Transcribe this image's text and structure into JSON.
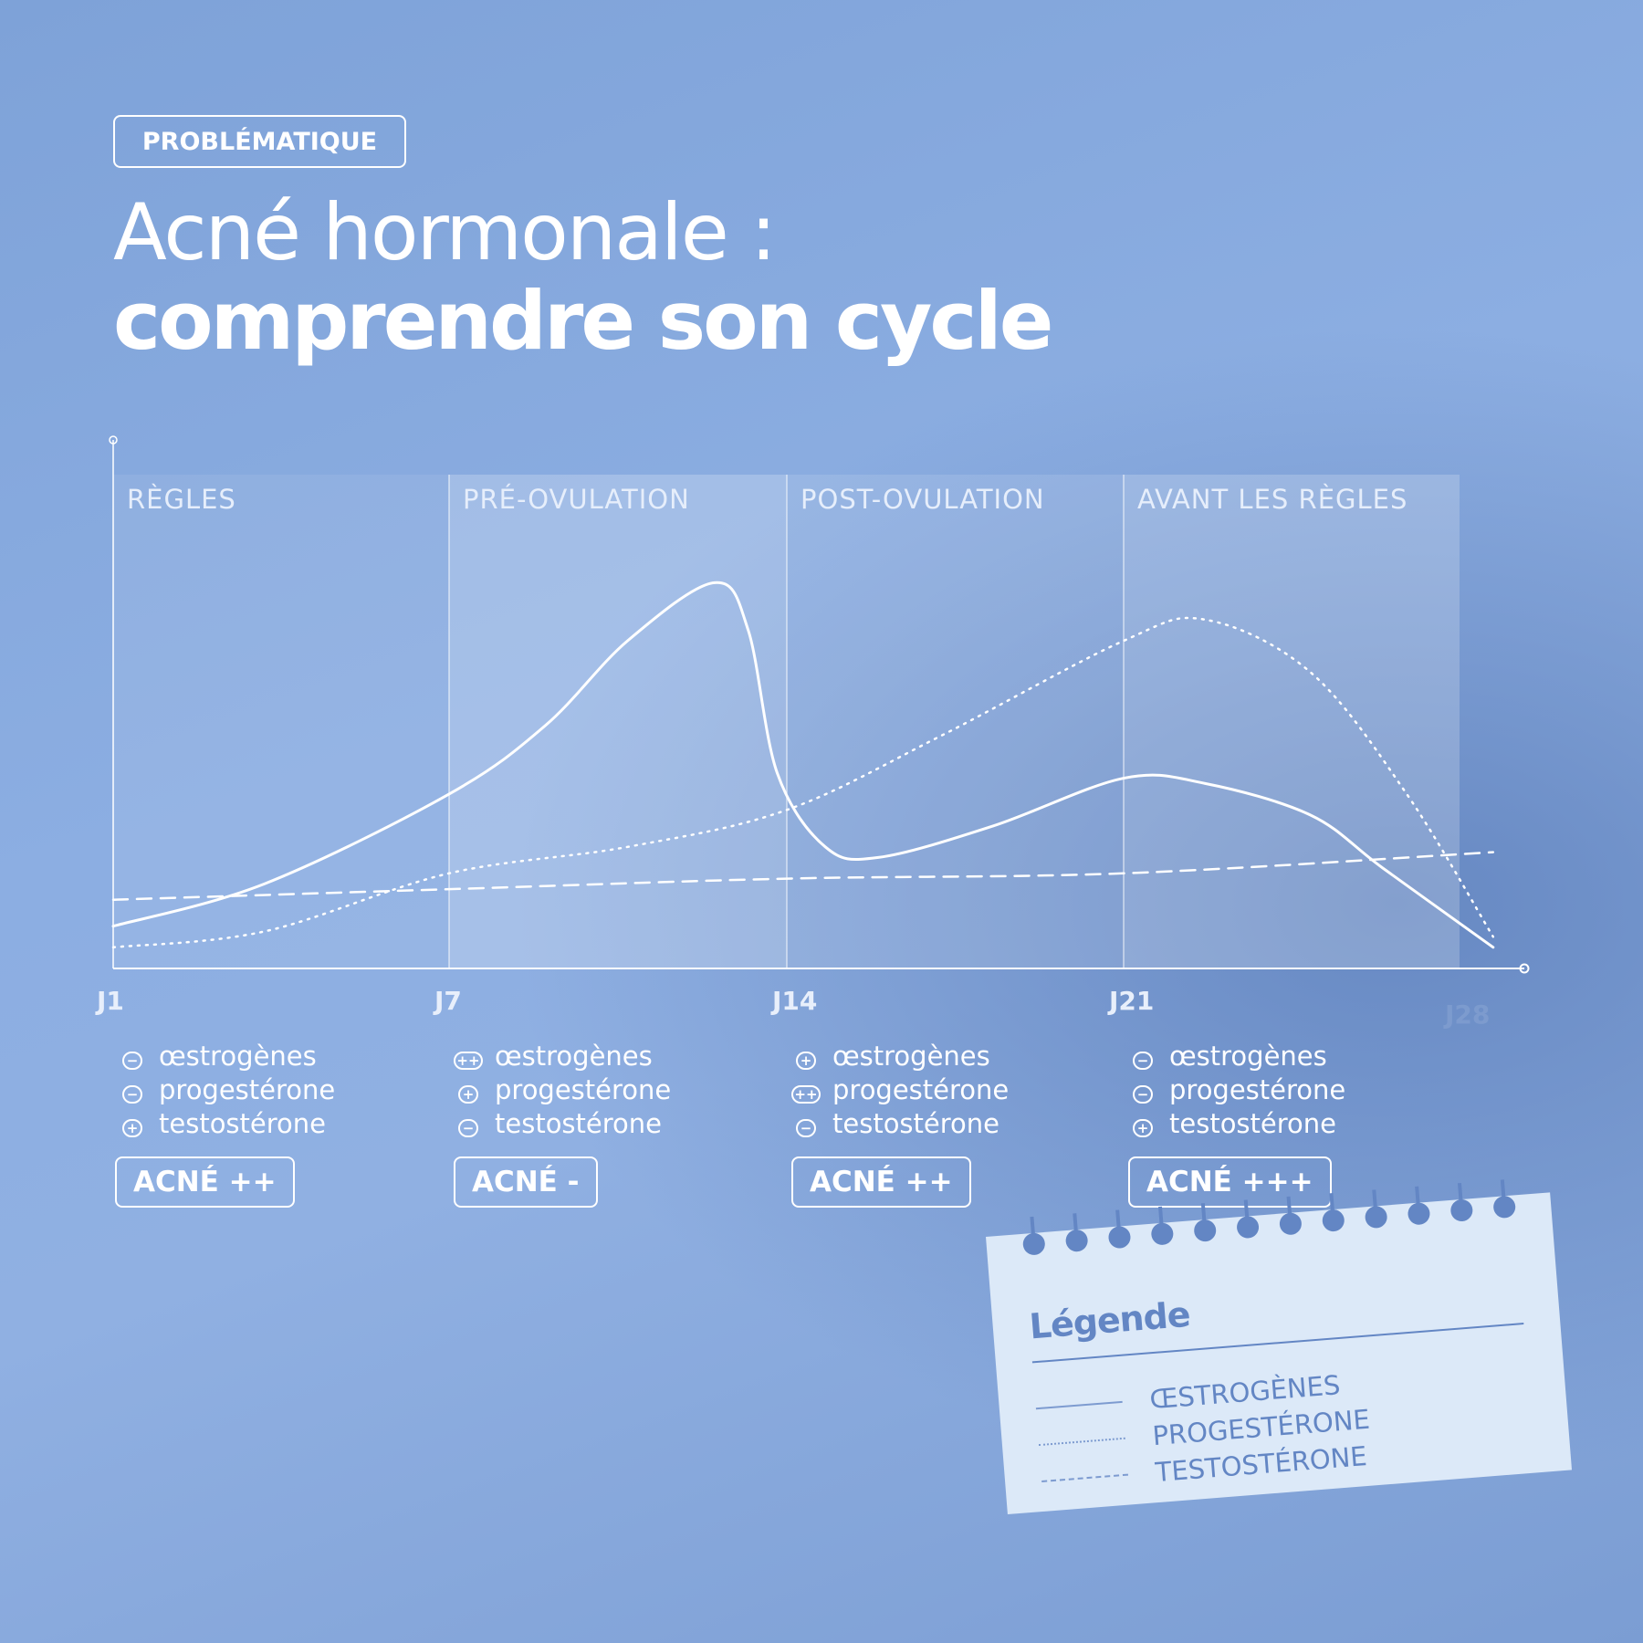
{
  "header": {
    "kicker": "PROBLÉMATIQUE",
    "title_line1": "Acné hormonale :",
    "title_line2": "comprendre son cycle"
  },
  "chart_data": {
    "type": "line",
    "x_ticks": [
      "J1",
      "J7",
      "J14",
      "J21",
      "J28"
    ],
    "x_tick_days": [
      1,
      7,
      14,
      21,
      28
    ],
    "phases": [
      "RÈGLES",
      "PRÉ-OVULATION",
      "POST-OVULATION",
      "AVANT LES RÈGLES"
    ],
    "ylim": [
      0,
      100
    ],
    "series": [
      {
        "name": "ŒSTROGÈNES",
        "style": "solid",
        "x": [
          1,
          3.7,
          7,
          9,
          10.7,
          12.5,
          13.2,
          13.8,
          14.8,
          15.9,
          18.3,
          21,
          22.7,
          24.9,
          26.4,
          28.7
        ],
        "y": [
          8,
          16,
          33,
          46,
          62,
          73,
          64,
          37,
          23,
          21,
          27,
          36,
          35,
          29,
          19,
          4
        ]
      },
      {
        "name": "PROGESTÉRONE",
        "style": "dotted",
        "x": [
          1,
          3.7,
          7,
          10.7,
          14,
          17.2,
          21,
          22.7,
          24.9,
          26.9,
          28.7
        ],
        "y": [
          4,
          7,
          18,
          23,
          30,
          44,
          62,
          66,
          56,
          33,
          6
        ]
      },
      {
        "name": "TESTOSTÉRONE",
        "style": "dashed",
        "x": [
          1,
          7,
          14,
          21,
          28.7
        ],
        "y": [
          13,
          15,
          17,
          18,
          22
        ]
      }
    ]
  },
  "phases_detail": [
    {
      "hormones": [
        {
          "sign": "−",
          "label": "œstrogènes"
        },
        {
          "sign": "−",
          "label": "progestérone"
        },
        {
          "sign": "+",
          "label": "testostérone"
        }
      ],
      "acne": "ACNÉ ++"
    },
    {
      "hormones": [
        {
          "sign": "++",
          "label": "œstrogènes"
        },
        {
          "sign": "+",
          "label": "progestérone"
        },
        {
          "sign": "−",
          "label": "testostérone"
        }
      ],
      "acne": "ACNÉ -"
    },
    {
      "hormones": [
        {
          "sign": "+",
          "label": "œstrogènes"
        },
        {
          "sign": "++",
          "label": "progestérone"
        },
        {
          "sign": "−",
          "label": "testostérone"
        }
      ],
      "acne": "ACNÉ ++"
    },
    {
      "hormones": [
        {
          "sign": "−",
          "label": "œstrogènes"
        },
        {
          "sign": "−",
          "label": "progestérone"
        },
        {
          "sign": "+",
          "label": "testostérone"
        }
      ],
      "acne": "ACNÉ +++"
    }
  ],
  "legend": {
    "title": "Légende",
    "items": [
      "ŒSTROGÈNES",
      "PROGESTÉRONE",
      "TESTOSTÉRONE"
    ]
  },
  "colors": {
    "background": "#8aaee0",
    "line": "#ffffff",
    "note": "#dce9f8",
    "note_text": "#6386c4"
  }
}
